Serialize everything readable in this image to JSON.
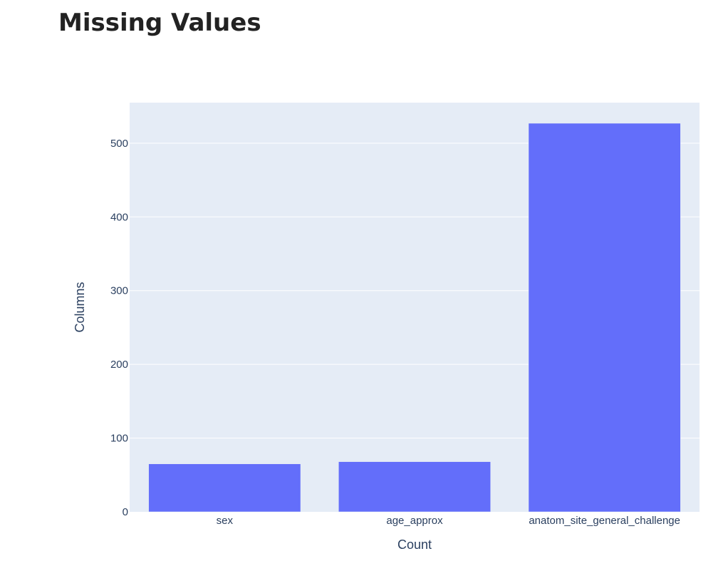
{
  "chart_data": {
    "type": "bar",
    "title": "Missing Values",
    "xlabel": "Count",
    "ylabel": "Columns",
    "categories": [
      "sex",
      "age_approx",
      "anatom_site_general_challenge"
    ],
    "values": [
      65,
      68,
      527
    ],
    "ylim": [
      0,
      555
    ],
    "yticks": [
      0,
      100,
      200,
      300,
      400,
      500
    ],
    "bar_color": "#636efa",
    "plot_bg": "#e5ecf6",
    "grid_color": "#ffffff",
    "grid": true
  }
}
